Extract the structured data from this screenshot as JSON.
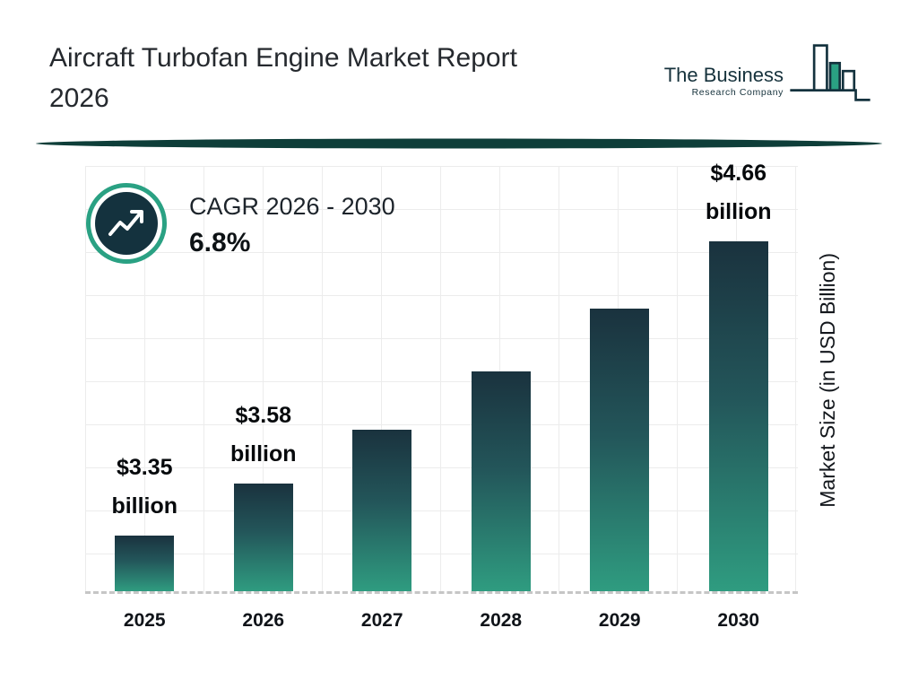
{
  "header": {
    "title_line1": "Aircraft Turbofan Engine Market Report",
    "title_line2": "2026",
    "logo": {
      "name_line": "The Business",
      "sub_line": "Research Company"
    }
  },
  "cagr": {
    "label": "CAGR 2026 - 2030",
    "value": "6.8%"
  },
  "chart_data": {
    "type": "bar",
    "title": "Aircraft Turbofan Engine Market Report 2026",
    "categories": [
      "2025",
      "2026",
      "2027",
      "2028",
      "2029",
      "2030"
    ],
    "values": [
      3.35,
      3.58,
      3.82,
      4.08,
      4.36,
      4.66
    ],
    "unit": "USD Billion",
    "bar_value_labels": [
      {
        "line1": "$3.35",
        "line2": "billion"
      },
      {
        "line1": "$3.58",
        "line2": "billion"
      },
      null,
      null,
      null,
      {
        "line1": "$4.66",
        "line2": "billion"
      }
    ],
    "xlabel": "",
    "ylabel": "Market Size (in USD Billion)",
    "ylim": [
      3.1,
      4.66
    ],
    "grid": true,
    "legend": false,
    "colors": {
      "bar_gradient_top": "#1a323e",
      "bar_gradient_bottom": "#2f9c80",
      "accent_teal": "#2aa183",
      "dark_navy": "#14323e",
      "divider": "#0e3e39"
    }
  }
}
